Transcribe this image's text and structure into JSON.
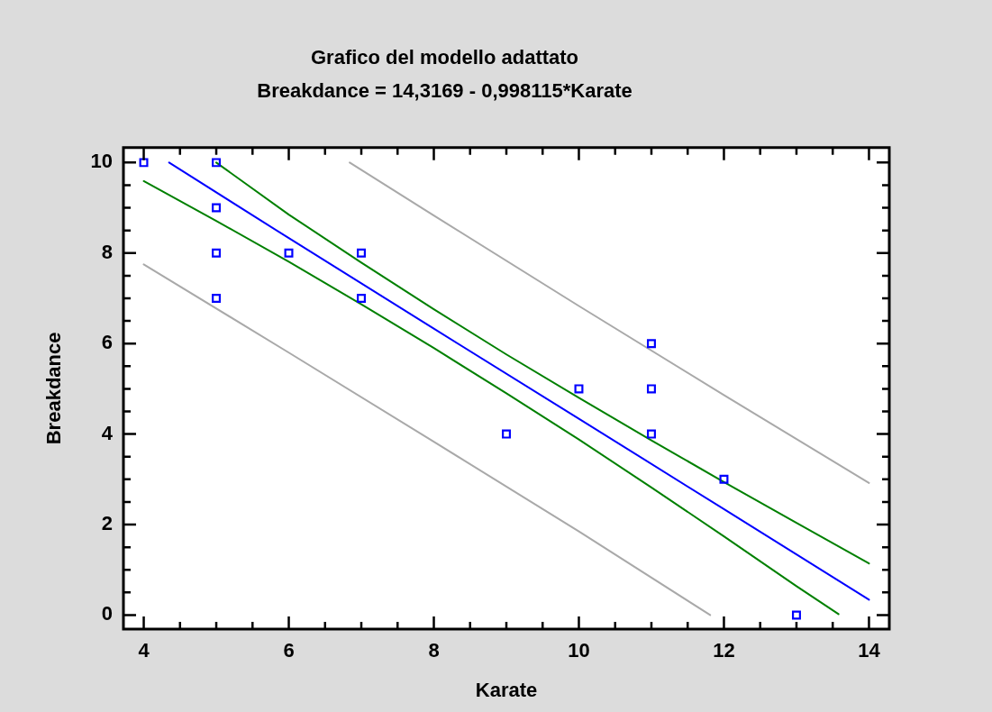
{
  "chart_data": {
    "type": "scatter",
    "title": "Grafico del modello adattato",
    "subtitle": "Breakdance = 14,3169 - 0,998115*Karate",
    "xlabel": "Karate",
    "ylabel": "Breakdance",
    "xlim": [
      3.72,
      14.28
    ],
    "ylim": [
      -0.31,
      10.33
    ],
    "xticks": [
      4,
      {
        "value": 4.5,
        "label": null
      },
      {
        "value": 5,
        "label": null
      },
      {
        "value": 5.5,
        "label": null
      },
      6,
      {
        "value": 6.5,
        "label": null
      },
      {
        "value": 7,
        "label": null
      },
      {
        "value": 7.5,
        "label": null
      },
      8,
      {
        "value": 8.5,
        "label": null
      },
      {
        "value": 9,
        "label": null
      },
      {
        "value": 9.5,
        "label": null
      },
      10,
      {
        "value": 10.5,
        "label": null
      },
      {
        "value": 11,
        "label": null
      },
      {
        "value": 11.5,
        "label": null
      },
      12,
      {
        "value": 12.5,
        "label": null
      },
      {
        "value": 13,
        "label": null
      },
      {
        "value": 13.5,
        "label": null
      },
      14
    ],
    "yticks": [
      0,
      {
        "value": 0.5,
        "label": null
      },
      {
        "value": 1,
        "label": null
      },
      {
        "value": 1.5,
        "label": null
      },
      2,
      {
        "value": 2.5,
        "label": null
      },
      {
        "value": 3,
        "label": null
      },
      {
        "value": 3.5,
        "label": null
      },
      4,
      {
        "value": 4.5,
        "label": null
      },
      {
        "value": 5,
        "label": null
      },
      {
        "value": 5.5,
        "label": null
      },
      6,
      {
        "value": 6.5,
        "label": null
      },
      {
        "value": 7,
        "label": null
      },
      {
        "value": 7.5,
        "label": null
      },
      8,
      {
        "value": 8.5,
        "label": null
      },
      {
        "value": 9,
        "label": null
      },
      {
        "value": 9.5,
        "label": null
      },
      10
    ],
    "legend": false,
    "series": [
      {
        "type": "scatter",
        "marker": "square",
        "color": "#0000ff",
        "x": [
          4,
          5,
          5,
          5,
          5,
          6,
          7,
          7,
          9,
          10,
          11,
          11,
          11,
          12,
          13
        ],
        "values": [
          10,
          10,
          9,
          8,
          7,
          8,
          8,
          7,
          4,
          5,
          6,
          5,
          4,
          3,
          0
        ]
      },
      {
        "type": "line",
        "marker": "none",
        "color": "#0000ff",
        "x": [
          4.35,
          6,
          8,
          10,
          12,
          14
        ],
        "values": [
          10.0,
          8.33,
          6.33,
          4.34,
          2.34,
          0.34
        ]
      },
      {
        "type": "line",
        "marker": "none",
        "color": "#008000",
        "x": [
          5,
          6,
          7,
          8,
          9,
          10,
          11,
          12,
          13,
          14
        ],
        "values": [
          10.0,
          8.85,
          7.79,
          6.76,
          5.76,
          4.8,
          3.86,
          2.94,
          2.04,
          1.14
        ]
      },
      {
        "type": "line",
        "marker": "none",
        "color": "#008000",
        "x": [
          4,
          5,
          6,
          7,
          8,
          9,
          10,
          11,
          12,
          13,
          13.58
        ],
        "values": [
          9.59,
          8.71,
          7.81,
          6.87,
          5.9,
          4.9,
          3.88,
          2.82,
          1.74,
          0.64,
          0.02
        ]
      },
      {
        "type": "line",
        "marker": "none",
        "color": "#a9a9a9",
        "x": [
          6.84,
          8,
          10,
          12,
          14
        ],
        "values": [
          10.0,
          8.83,
          6.83,
          4.86,
          2.92
        ]
      },
      {
        "type": "line",
        "marker": "none",
        "color": "#a9a9a9",
        "x": [
          4,
          6,
          8,
          10,
          11.81
        ],
        "values": [
          7.75,
          5.8,
          3.83,
          1.85,
          0.0
        ]
      }
    ]
  }
}
